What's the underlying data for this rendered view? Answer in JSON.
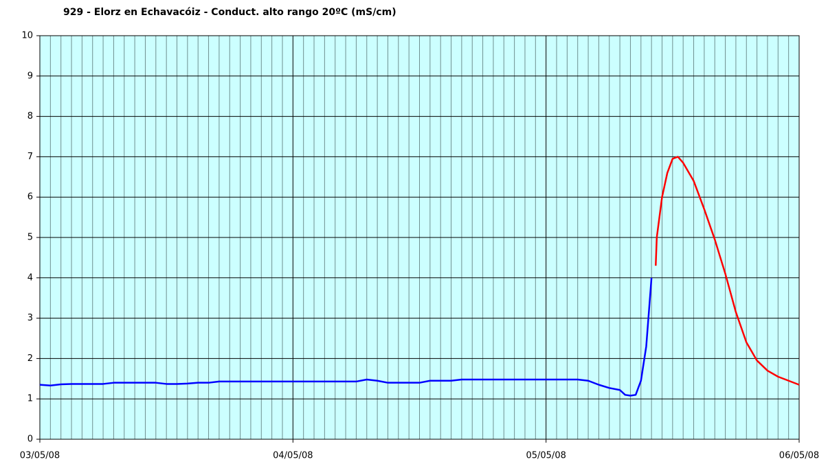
{
  "chart_data": {
    "type": "line",
    "title": "929 - Elorz en Echavacóiz - Conduct. alto rango 20ºC (mS/cm)",
    "xlim": [
      0,
      72
    ],
    "xticks": [
      {
        "value": 0,
        "label": "03/05/08"
      },
      {
        "value": 24,
        "label": "04/05/08"
      },
      {
        "value": 48,
        "label": "05/05/08"
      },
      {
        "value": 72,
        "label": "06/05/08"
      }
    ],
    "xminorticks": [
      1,
      2,
      3,
      4,
      5,
      6,
      7,
      8,
      9,
      10,
      11,
      12,
      13,
      14,
      15,
      16,
      17,
      18,
      19,
      20,
      21,
      22,
      23,
      25,
      26,
      27,
      28,
      29,
      30,
      31,
      32,
      33,
      34,
      35,
      36,
      37,
      38,
      39,
      40,
      41,
      42,
      43,
      44,
      45,
      46,
      47,
      49,
      50,
      51,
      52,
      53,
      54,
      55,
      56,
      57,
      58,
      59,
      60,
      61,
      62,
      63,
      64,
      65,
      66,
      67,
      68,
      69,
      70,
      71
    ],
    "ylim": [
      0,
      10
    ],
    "yticks": [
      0,
      1,
      2,
      3,
      4,
      5,
      6,
      7,
      8,
      9,
      10
    ],
    "grid": true,
    "series": [
      {
        "color": "#0000ff",
        "x": [
          0,
          1,
          2,
          3,
          6,
          7,
          11,
          12,
          13,
          14,
          15,
          16,
          17,
          30,
          31,
          32,
          33,
          36,
          37,
          39,
          40,
          51,
          52,
          53,
          54,
          55,
          55.5,
          56,
          56.5,
          57,
          57.5,
          58
        ],
        "values": [
          1.35,
          1.33,
          1.36,
          1.37,
          1.37,
          1.4,
          1.4,
          1.37,
          1.37,
          1.38,
          1.4,
          1.4,
          1.43,
          1.43,
          1.48,
          1.45,
          1.4,
          1.4,
          1.45,
          1.45,
          1.48,
          1.48,
          1.45,
          1.35,
          1.27,
          1.22,
          1.1,
          1.08,
          1.1,
          1.45,
          2.3,
          4.0
        ]
      },
      {
        "color": "#ff0000",
        "x": [
          58.4,
          58.5,
          59,
          59.5,
          60,
          60.5,
          61,
          62,
          63,
          64,
          65,
          66,
          67,
          68,
          69,
          70,
          71,
          72
        ],
        "values": [
          4.3,
          5.0,
          6.0,
          6.6,
          6.95,
          7.0,
          6.85,
          6.4,
          5.7,
          4.95,
          4.1,
          3.15,
          2.4,
          1.95,
          1.7,
          1.55,
          1.45,
          1.35
        ]
      }
    ]
  }
}
